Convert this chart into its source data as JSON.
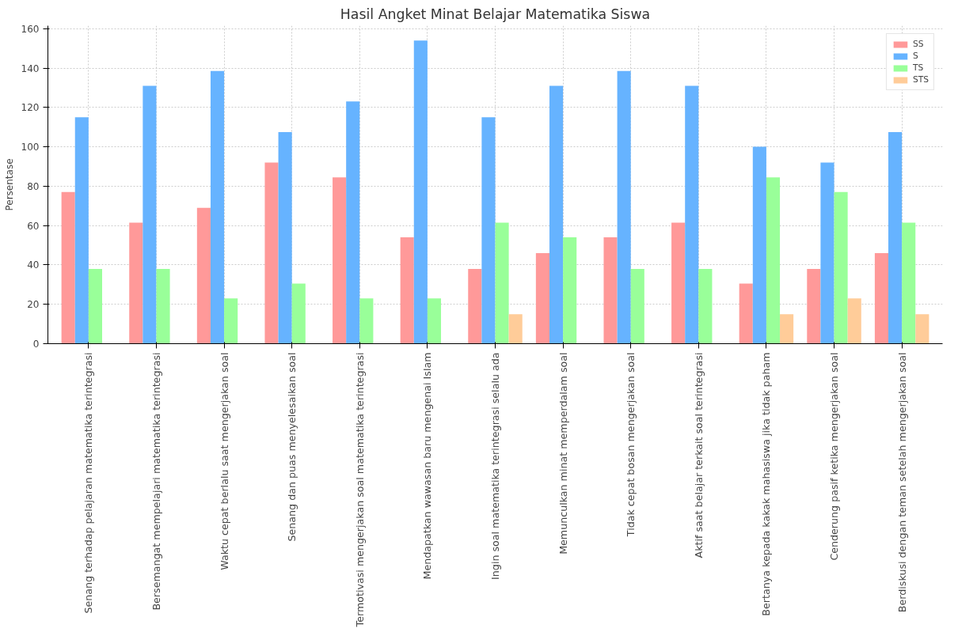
{
  "chart_data": {
    "type": "bar",
    "title": "Hasil Angket Minat Belajar Matematika Siswa",
    "ylabel": "Persentase",
    "categories": [
      "Senang terhadap pelajaran matematika terintegrasi",
      "Bersemangat mempelajari matematika terintegrasi",
      "Waktu cepat berlalu saat mengerjakan soal",
      "Senang dan puas menyelesaikan soal",
      "Termotivasi mengerjakan soal matematika terintegrasi",
      "Mendapatkan wawasan baru mengenai Islam",
      "Ingin soal matematika terintegrasi selalu ada",
      "Memunculkan minat memperdalam soal",
      "Tidak cepat bosan mengerjakan soal",
      "Aktif saat belajar terkait soal terintegrasi",
      "Bertanya kepada kakak mahasiswa jika tidak paham",
      "Cenderung pasif ketika mengerjakan soal",
      "Berdiskusi dengan teman setelah mengerjakan soal"
    ],
    "series": [
      {
        "name": "SS",
        "color": "#ff9999",
        "values": [
          77,
          61.5,
          69,
          92,
          84.5,
          54,
          38,
          46,
          54,
          61.5,
          30.5,
          38,
          46
        ]
      },
      {
        "name": "S",
        "color": "#66b3ff",
        "values": [
          115,
          131,
          138.5,
          107.5,
          123,
          154,
          115,
          131,
          138.5,
          131,
          100,
          92,
          107.5
        ]
      },
      {
        "name": "TS",
        "color": "#99ff99",
        "values": [
          38,
          38,
          23,
          30.5,
          23,
          23,
          61.5,
          54,
          38,
          38,
          84.5,
          77,
          61.5
        ]
      },
      {
        "name": "STS",
        "color": "#ffcc99",
        "values": [
          0,
          0,
          0,
          0,
          0,
          0,
          15,
          0,
          0,
          0,
          15,
          23,
          15
        ]
      }
    ],
    "ylim": [
      0,
      161.5
    ],
    "yticks": [
      0,
      20,
      40,
      60,
      80,
      100,
      120,
      140,
      160
    ],
    "grid": true,
    "legend": "top right"
  }
}
